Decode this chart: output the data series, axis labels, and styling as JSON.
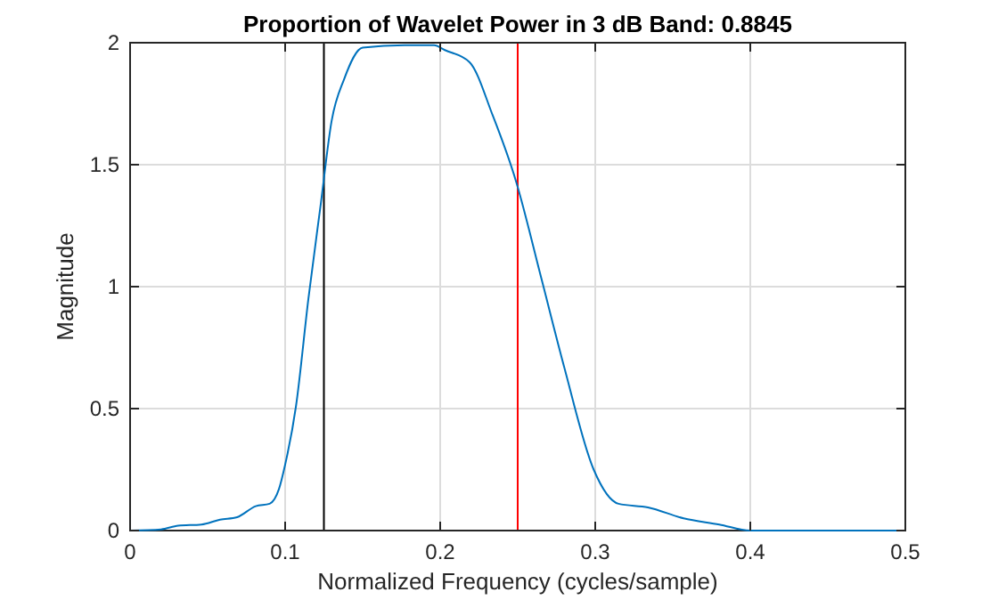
{
  "chart_data": {
    "type": "line",
    "title": "Proportion of Wavelet Power in 3 dB Band: 0.8845",
    "xlabel": "Normalized Frequency (cycles/sample)",
    "ylabel": "Magnitude",
    "xlim": [
      0,
      0.5
    ],
    "xticks": [
      0,
      0.1,
      0.2,
      0.3,
      0.4,
      0.5
    ],
    "ylim": [
      0,
      2
    ],
    "yticks": [
      0,
      0.5,
      1,
      1.5,
      2
    ],
    "grid": true,
    "marker": "none",
    "line_style": "solid",
    "series": [
      {
        "color": "#0072bd",
        "x": [
          0,
          0.02,
          0.031,
          0.046,
          0.058,
          0.069,
          0.081,
          0.09,
          0.096,
          0.1,
          0.107,
          0.115,
          0.123,
          0.13,
          0.138,
          0.15,
          0.177,
          0.196,
          0.203,
          0.219,
          0.234,
          0.249,
          0.265,
          0.28,
          0.299,
          0.315,
          0.334,
          0.357,
          0.38,
          0.4,
          0.5
        ],
        "values": [
          0,
          0.005,
          0.02,
          0.025,
          0.045,
          0.055,
          0.1,
          0.11,
          0.17,
          0.27,
          0.51,
          0.95,
          1.34,
          1.68,
          1.85,
          1.98,
          1.99,
          1.99,
          1.97,
          1.92,
          1.7,
          1.43,
          1.04,
          0.67,
          0.25,
          0.11,
          0.095,
          0.05,
          0.025,
          0,
          0
        ]
      }
    ],
    "ref_lines": [
      {
        "axis": "x",
        "value": 0.125,
        "color": "#000000"
      },
      {
        "axis": "x",
        "value": 0.25,
        "color": "#ff0000"
      }
    ]
  }
}
